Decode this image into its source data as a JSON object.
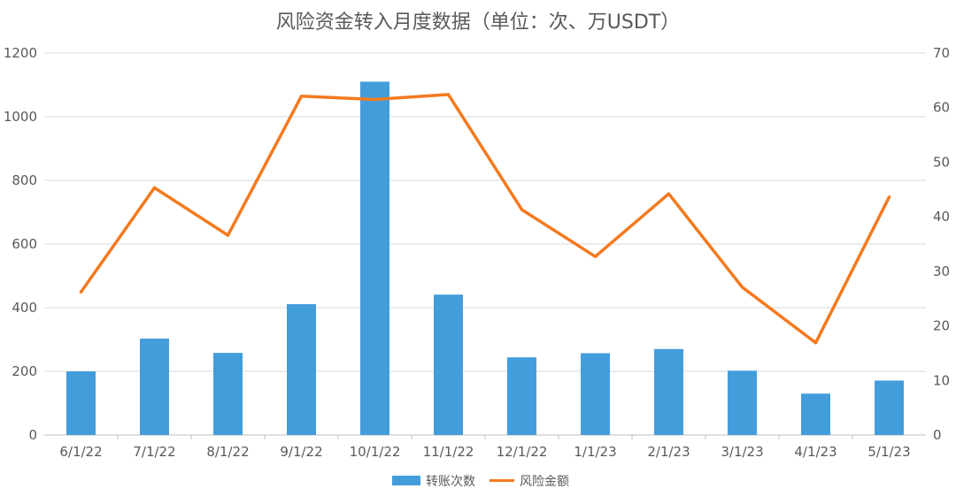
{
  "chart_data": {
    "type": "bar",
    "title": "风险资金转入月度数据（单位：次、万USDT）",
    "categories": [
      "6/1/22",
      "7/1/22",
      "8/1/22",
      "9/1/22",
      "10/1/22",
      "11/1/22",
      "12/1/22",
      "1/1/23",
      "2/1/23",
      "3/1/23",
      "4/1/23",
      "5/1/23"
    ],
    "series": [
      {
        "name": "转账次数",
        "type": "bar",
        "axis": "left",
        "color": "#449ddb",
        "values": [
          200,
          303,
          258,
          411,
          1110,
          441,
          244,
          257,
          270,
          202,
          130,
          171
        ]
      },
      {
        "name": "风险金额",
        "type": "line",
        "axis": "right",
        "color": "#f47a1f",
        "values": [
          26.2,
          45.3,
          36.6,
          62.1,
          61.5,
          62.4,
          41.3,
          32.7,
          44.2,
          27.1,
          16.9,
          43.6
        ]
      }
    ],
    "y_left": {
      "min": 0,
      "max": 1200,
      "ticks": [
        "0",
        "200",
        "400",
        "600",
        "800",
        "1000",
        "1200"
      ]
    },
    "y_right": {
      "min": 0,
      "max": 70,
      "ticks": [
        "0",
        "10",
        "20",
        "30",
        "40",
        "50",
        "60",
        "70"
      ]
    },
    "grid": true,
    "legend_position": "bottom"
  }
}
